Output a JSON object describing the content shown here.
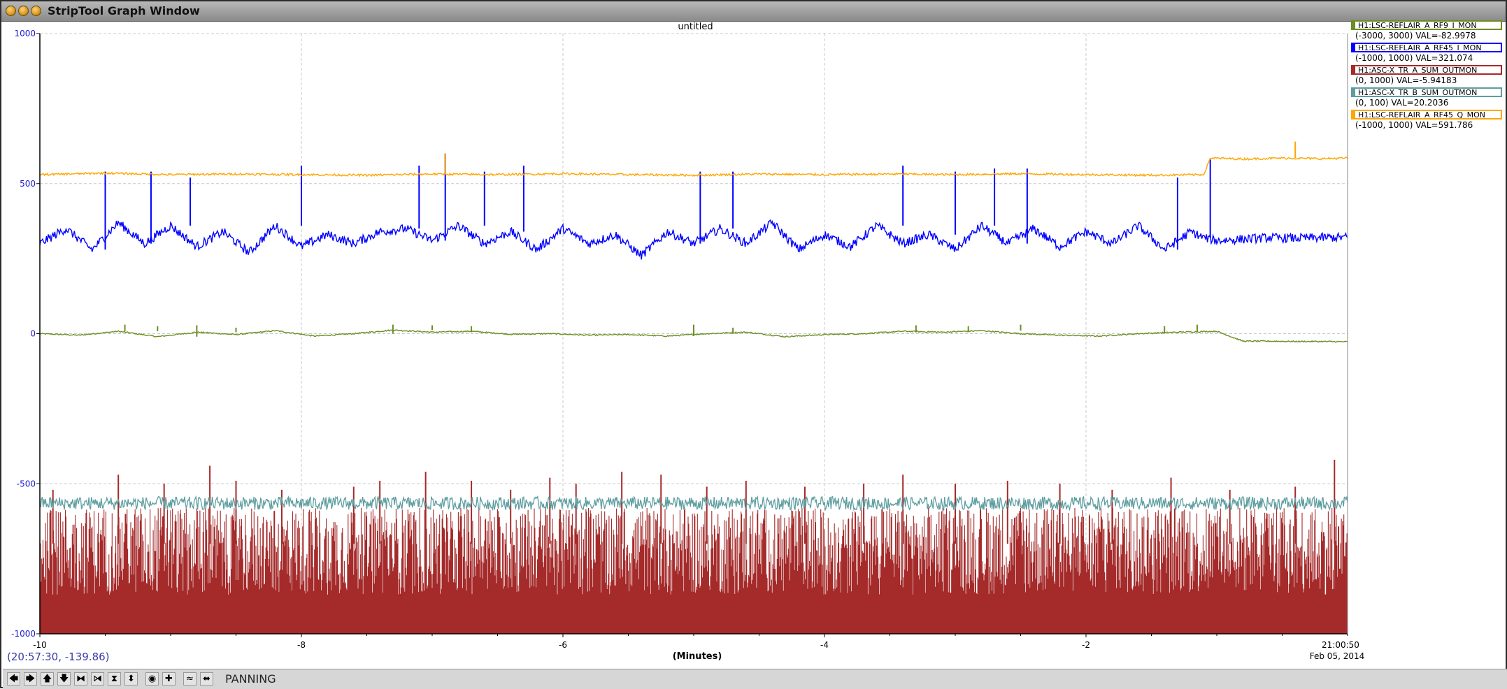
{
  "window": {
    "title": "StripTool Graph Window"
  },
  "chart_data": {
    "type": "line",
    "title": "untitled",
    "xlabel": "(Minutes)",
    "xlim": [
      -10,
      0
    ],
    "ylim": [
      -1000,
      1000
    ],
    "x_ticks": [
      -10,
      -8,
      -6,
      -4,
      -2
    ],
    "x_tick_labels": [
      "-10",
      "-8",
      "-6",
      "-4",
      "-2"
    ],
    "end_time_label": "21:00:50",
    "end_date_label": "Feb 05, 2014",
    "y_ticks": [
      -1000,
      -500,
      0,
      500,
      1000
    ],
    "y_tick_labels": [
      "-1000",
      "-500",
      "0",
      "500",
      "1000"
    ],
    "grid": true,
    "series": [
      {
        "name": "H1:LSC-REFLAIR_A_RF9_I_MON",
        "range_text": "(-3000, 3000) VAL=-82.9978",
        "color": "#6b8e23",
        "kind": "line",
        "x": [
          -10,
          -9.7,
          -9.4,
          -9.1,
          -8.8,
          -8.5,
          -8.2,
          -7.9,
          -7.6,
          -7.3,
          -7.0,
          -6.7,
          -6.4,
          -6.1,
          -5.8,
          -5.5,
          -5.2,
          -4.9,
          -4.6,
          -4.3,
          -4.0,
          -3.7,
          -3.4,
          -3.1,
          -2.8,
          -2.5,
          -2.2,
          -1.9,
          -1.6,
          -1.3,
          -1.0,
          -0.8,
          -0.6,
          -0.4,
          -0.2,
          0
        ],
        "y": [
          0,
          -5,
          8,
          -10,
          5,
          -3,
          10,
          -8,
          0,
          12,
          5,
          8,
          -2,
          0,
          -5,
          -3,
          -8,
          0,
          5,
          -10,
          -3,
          0,
          8,
          5,
          10,
          0,
          -5,
          -8,
          0,
          5,
          8,
          -25,
          -25,
          -26,
          -26,
          -27
        ],
        "spikes": [
          [
            -9.35,
            30
          ],
          [
            -9.1,
            25
          ],
          [
            -8.8,
            28
          ],
          [
            -8.5,
            20
          ],
          [
            -7.3,
            30
          ],
          [
            -7.0,
            28
          ],
          [
            -6.7,
            25
          ],
          [
            -5.0,
            30
          ],
          [
            -4.7,
            20
          ],
          [
            -3.3,
            28
          ],
          [
            -2.9,
            25
          ],
          [
            -2.5,
            30
          ],
          [
            -1.4,
            25
          ],
          [
            -1.15,
            30
          ]
        ]
      },
      {
        "name": "H1:LSC-REFLAIR_A_RF45_I_MON",
        "range_text": "(-1000, 1000) VAL=321.074",
        "color": "#0000ff",
        "kind": "line",
        "x": [
          -10,
          -9.8,
          -9.6,
          -9.4,
          -9.2,
          -9.0,
          -8.8,
          -8.6,
          -8.4,
          -8.2,
          -8.0,
          -7.8,
          -7.6,
          -7.4,
          -7.2,
          -7.0,
          -6.8,
          -6.6,
          -6.4,
          -6.2,
          -6.0,
          -5.8,
          -5.6,
          -5.4,
          -5.2,
          -5.0,
          -4.8,
          -4.6,
          -4.4,
          -4.2,
          -4.0,
          -3.8,
          -3.6,
          -3.4,
          -3.2,
          -3.0,
          -2.8,
          -2.6,
          -2.4,
          -2.2,
          -2.0,
          -1.8,
          -1.6,
          -1.4,
          -1.2,
          -1.1,
          -1.0,
          -0.8,
          -0.6,
          -0.4,
          -0.2,
          0
        ],
        "y": [
          300,
          350,
          280,
          370,
          300,
          360,
          290,
          340,
          270,
          360,
          290,
          330,
          300,
          340,
          350,
          310,
          360,
          300,
          340,
          280,
          350,
          300,
          330,
          260,
          340,
          300,
          350,
          300,
          370,
          280,
          330,
          290,
          360,
          300,
          330,
          280,
          360,
          300,
          350,
          290,
          340,
          300,
          360,
          280,
          340,
          320,
          310,
          315,
          320,
          318,
          320,
          321
        ],
        "spikes": [
          [
            -9.5,
            540
          ],
          [
            -9.15,
            540
          ],
          [
            -8.85,
            520
          ],
          [
            -8.0,
            560
          ],
          [
            -7.1,
            560
          ],
          [
            -6.9,
            600
          ],
          [
            -6.6,
            540
          ],
          [
            -6.3,
            560
          ],
          [
            -4.95,
            540
          ],
          [
            -4.7,
            540
          ],
          [
            -3.4,
            560
          ],
          [
            -3.0,
            540
          ],
          [
            -2.7,
            550
          ],
          [
            -2.45,
            550
          ],
          [
            -1.3,
            520
          ],
          [
            -1.05,
            580
          ]
        ]
      },
      {
        "name": "H1:ASC-X_TR_A_SUM_OUTMON",
        "range_text": "(0, 1000) VAL=-5.94183",
        "color": "#a52a2a",
        "kind": "bars",
        "base": -1000,
        "level": -720,
        "peaks": [
          [
            -9.9,
            -520
          ],
          [
            -9.4,
            -470
          ],
          [
            -9.05,
            -500
          ],
          [
            -8.7,
            -440
          ],
          [
            -8.5,
            -490
          ],
          [
            -8.15,
            -520
          ],
          [
            -7.6,
            -510
          ],
          [
            -7.4,
            -490
          ],
          [
            -7.05,
            -460
          ],
          [
            -6.7,
            -490
          ],
          [
            -6.4,
            -520
          ],
          [
            -6.1,
            -480
          ],
          [
            -5.9,
            -500
          ],
          [
            -5.55,
            -460
          ],
          [
            -5.25,
            -470
          ],
          [
            -4.9,
            -510
          ],
          [
            -4.6,
            -490
          ],
          [
            -4.15,
            -510
          ],
          [
            -3.7,
            -500
          ],
          [
            -3.4,
            -470
          ],
          [
            -3.0,
            -500
          ],
          [
            -2.6,
            -490
          ],
          [
            -2.2,
            -500
          ],
          [
            -1.8,
            -520
          ],
          [
            -1.35,
            -480
          ],
          [
            -0.9,
            -520
          ],
          [
            -0.4,
            -510
          ],
          [
            -0.1,
            -420
          ]
        ]
      },
      {
        "name": "H1:ASC-X_TR_B_SUM_OUTMON",
        "range_text": "(0, 100) VAL=20.2036",
        "color": "#5f9ea0",
        "kind": "noise",
        "mean": -565,
        "amplitude": 22
      },
      {
        "name": "H1:LSC-REFLAIR_A_RF45_Q_MON",
        "range_text": "(-1000, 1000) VAL=591.786",
        "color": "#ffa500",
        "kind": "line",
        "x": [
          -10,
          -9.5,
          -9.0,
          -8.5,
          -8.0,
          -7.5,
          -7.0,
          -6.5,
          -6.0,
          -5.5,
          -5.0,
          -4.5,
          -4.0,
          -3.5,
          -3.0,
          -2.5,
          -2.0,
          -1.5,
          -1.1,
          -1.05,
          -0.8,
          -0.5,
          -0.2,
          0
        ],
        "y": [
          530,
          535,
          530,
          532,
          530,
          528,
          532,
          530,
          533,
          530,
          528,
          532,
          530,
          532,
          530,
          533,
          530,
          528,
          530,
          585,
          582,
          585,
          583,
          585
        ],
        "spikes": [
          [
            -6.9,
            600
          ],
          [
            -0.4,
            640
          ]
        ]
      }
    ]
  },
  "status": {
    "coordinates": "(20:57:30, -139.86)",
    "mode": "PANNING"
  },
  "toolbar": {
    "buttons": [
      {
        "name": "pan-left-button",
        "glyph": "🡄"
      },
      {
        "name": "pan-right-button",
        "glyph": "🡆"
      },
      {
        "name": "pan-up-button",
        "glyph": "🡅"
      },
      {
        "name": "pan-down-button",
        "glyph": "🡇"
      },
      {
        "name": "zoom-in-x-button",
        "glyph": "⧓"
      },
      {
        "name": "zoom-out-x-button",
        "glyph": "⧒"
      },
      {
        "name": "zoom-in-y-button",
        "glyph": "⧗"
      },
      {
        "name": "zoom-out-y-button",
        "glyph": "⬍"
      },
      {
        "name": "auto-scale-button",
        "glyph": "◉"
      },
      {
        "name": "reset-button",
        "glyph": "✚"
      },
      {
        "name": "refresh-button",
        "glyph": "≈"
      },
      {
        "name": "pan-mode-button",
        "glyph": "⬌"
      }
    ]
  }
}
